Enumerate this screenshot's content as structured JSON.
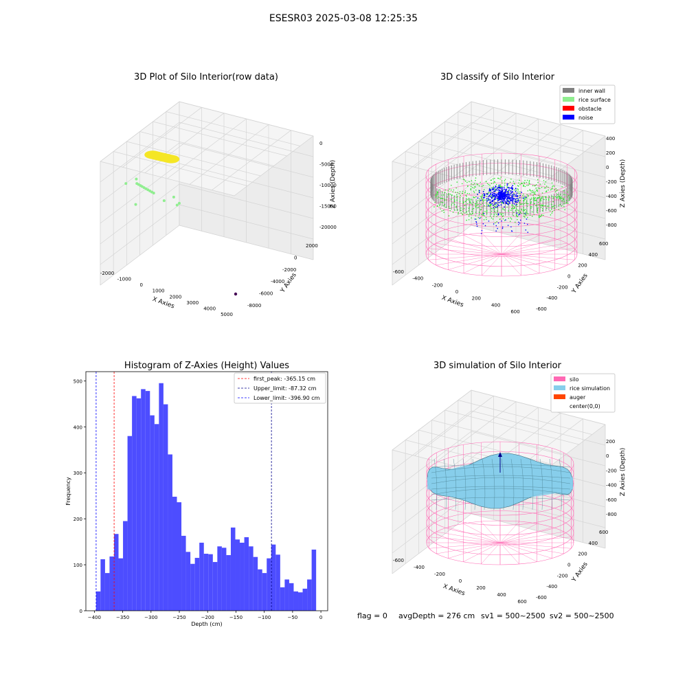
{
  "suptitle": "ESESR03 2025-03-08 12:25:35",
  "status_line": {
    "flag": "flag = 0",
    "avg_depth": "avgDepth = 276 cm",
    "sv1": "sv1 = 500~2500",
    "sv2": "sv2 = 500~2500"
  },
  "colors": {
    "inner_wall": "#808080",
    "rice_surface": "#90ee90",
    "obstacle": "#ff0000",
    "noise": "#0000ff",
    "silo": "#ff69b4",
    "rice_simulation": "#87ceeb",
    "auger": "#ff4500",
    "histogram_bar": "#4d4dff",
    "first_peak_line": "#ff0000",
    "upper_limit_line": "#00008b",
    "lower_limit_line": "#0000ff",
    "raw_cluster": "#f5e625",
    "raw_points": "#90ee90",
    "raw_outlier": "#440154"
  },
  "chart_data": [
    {
      "type": "scatter3d",
      "title": "3D Plot of Silo Interior(row data)",
      "xlabel": "X Axies",
      "ylabel": "Y Axies",
      "zlabel": "Z Axies (Depth)",
      "x_ticks": [
        "-2000",
        "-1000",
        "0",
        "1000",
        "2000",
        "3000",
        "4000",
        "5000"
      ],
      "y_ticks": [
        "2000",
        "0",
        "-2000",
        "-4000",
        "-6000",
        "-8000"
      ],
      "z_ticks": [
        "0",
        "-5000",
        "-10000",
        "-15000",
        "-20000"
      ],
      "xlim": [
        -2200,
        5200
      ],
      "ylim": [
        -9000,
        3000
      ],
      "zlim": [
        -22000,
        800
      ],
      "point_groups": [
        {
          "group": "cluster",
          "points": [
            [
              -300,
              -1800,
              0
            ],
            [
              -150,
              -1900,
              0
            ],
            [
              0,
              -2000,
              0
            ],
            [
              200,
              -2000,
              0
            ],
            [
              400,
              -2100,
              0
            ],
            [
              600,
              -2150,
              0
            ],
            [
              750,
              -2200,
              0
            ]
          ]
        },
        {
          "group": "scatter",
          "points": [
            [
              -1500,
              0,
              -3000
            ],
            [
              -1000,
              -1000,
              -2500
            ],
            [
              -900,
              -1000,
              -2600
            ],
            [
              -800,
              -1100,
              -2700
            ],
            [
              -700,
              -1100,
              -2800
            ],
            [
              -600,
              -1200,
              -2900
            ],
            [
              -500,
              -1300,
              -3000
            ],
            [
              -400,
              -1400,
              -3100
            ],
            [
              -300,
              -1500,
              -3200
            ],
            [
              -200,
              -1600,
              -3300
            ],
            [
              -100,
              -1700,
              -3400
            ],
            [
              -1000,
              -800,
              -1800
            ],
            [
              400,
              -2500,
              -4200
            ],
            [
              900,
              -3000,
              -3200
            ],
            [
              1100,
              -3000,
              -4400
            ],
            [
              1200,
              -3200,
              -4000
            ],
            [
              -1100,
              -1200,
              -6000
            ]
          ]
        },
        {
          "group": "outlier",
          "points": [
            [
              5000,
              -8500,
              -15000
            ]
          ]
        }
      ]
    },
    {
      "type": "scatter3d",
      "title": "3D classify of Silo Interior",
      "xlabel": "X Axies",
      "ylabel": "Y Axies",
      "zlabel": "Z Axies (Depth)",
      "x_ticks": [
        "-600",
        "-400",
        "-200",
        "0",
        "200",
        "400",
        "600"
      ],
      "y_ticks": [
        "600",
        "400",
        "200",
        "0",
        "-200",
        "-400",
        "-600"
      ],
      "z_ticks": [
        "400",
        "200",
        "0",
        "-200",
        "-400",
        "-600",
        "-800"
      ],
      "xlim": [
        -650,
        650
      ],
      "ylim": [
        -650,
        650
      ],
      "zlim": [
        -900,
        420
      ],
      "legend": [
        "inner wall",
        "rice surface",
        "obstacle",
        "noise"
      ],
      "legend_position": "top-right",
      "silo_radius": 500,
      "silo_z_range": [
        -850,
        0
      ]
    },
    {
      "type": "bar",
      "title": "Histogram of Z-Axies (Height) Values",
      "xlabel": "Depth (cm)",
      "ylabel": "Frequency",
      "xlim": [
        -415,
        12
      ],
      "ylim": [
        0,
        520
      ],
      "x_ticks": [
        -400,
        -350,
        -300,
        -250,
        -200,
        -150,
        -100,
        -50,
        0
      ],
      "y_ticks": [
        0,
        100,
        200,
        300,
        400,
        500
      ],
      "bin_start": -397,
      "bin_width": 7.93,
      "values": [
        42,
        112,
        82,
        118,
        167,
        114,
        195,
        380,
        467,
        462,
        482,
        478,
        425,
        406,
        495,
        449,
        340,
        248,
        236,
        163,
        128,
        102,
        115,
        148,
        124,
        123,
        106,
        140,
        137,
        121,
        181,
        155,
        148,
        160,
        140,
        117,
        90,
        82,
        114,
        144,
        122,
        51,
        68,
        60,
        42,
        40,
        48,
        68,
        133
      ],
      "vlines": [
        {
          "label": "first_peak: -365.15 cm",
          "value": -365.15
        },
        {
          "label": "Upper_limit: -87.32 cm",
          "value": -87.32
        },
        {
          "label": "Lower_limit: -396.90 cm",
          "value": -396.9
        }
      ],
      "legend_position": "top-right"
    },
    {
      "type": "surface3d",
      "title": "3D simulation of Silo Interior",
      "xlabel": "X Axies",
      "ylabel": "Y Axies",
      "zlabel": "Z Axies (Depth)",
      "x_ticks": [
        "-600",
        "-400",
        "-200",
        "0",
        "200",
        "400",
        "600"
      ],
      "y_ticks": [
        "600",
        "400",
        "200",
        "0",
        "-200",
        "-400",
        "-600"
      ],
      "z_ticks": [
        "200",
        "0",
        "-200",
        "-400",
        "-600",
        "-800"
      ],
      "xlim": [
        -650,
        650
      ],
      "ylim": [
        -650,
        650
      ],
      "zlim": [
        -900,
        320
      ],
      "legend": [
        "silo",
        "rice simulation",
        "auger",
        "center(0,0)"
      ],
      "legend_position": "top-right",
      "silo_radius": 500,
      "silo_z_range": [
        -850,
        0
      ],
      "rice_surface_mean_depth": -276
    }
  ]
}
